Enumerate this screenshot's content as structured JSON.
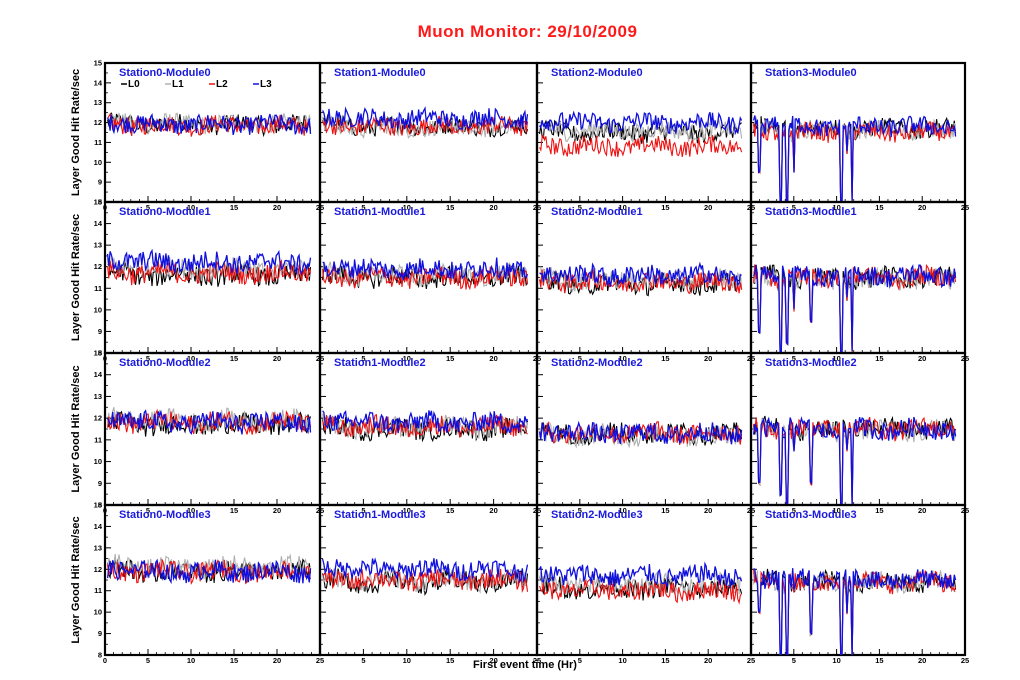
{
  "title": "Muon Monitor:  29/10/2009",
  "colors": {
    "title": "#ff1a1a",
    "panel_title": "#1a1adc",
    "L0": "#000000",
    "L1": "#b0b0b0",
    "L2": "#ee1111",
    "L3": "#1010dd"
  },
  "legend": [
    "L0",
    "L1",
    "L2",
    "L3"
  ],
  "ylabel": "Layer Good Hit Rate/sec",
  "xlabel": "First event time (Hr)",
  "x_ticks": [
    "0",
    "5",
    "10",
    "15",
    "20",
    "25"
  ],
  "y_ticks": [
    "8",
    "9",
    "10",
    "11",
    "12",
    "13",
    "14",
    "15"
  ],
  "chart_data": {
    "type": "line",
    "title": "Muon Monitor:  29/10/2009",
    "xlabel": "First event time (Hr)",
    "ylabel": "Layer Good Hit Rate/sec",
    "xlim": [
      0,
      25
    ],
    "ylim": [
      8,
      15
    ],
    "grid": false,
    "legend_placement": "top-left of first panel",
    "series_names": [
      "L0",
      "L1",
      "L2",
      "L3"
    ],
    "panels": [
      {
        "title": "Station0-Module0",
        "row": 0,
        "col": 0,
        "levels": {
          "L0": 11.9,
          "L1": 11.95,
          "L2": 11.85,
          "L3": 11.9
        },
        "dips": []
      },
      {
        "title": "Station1-Module0",
        "row": 0,
        "col": 1,
        "levels": {
          "L0": 11.8,
          "L1": 11.75,
          "L2": 11.8,
          "L3": 12.2
        },
        "dips": []
      },
      {
        "title": "Station2-Module0",
        "row": 0,
        "col": 2,
        "levels": {
          "L0": 11.5,
          "L1": 11.6,
          "L2": 10.8,
          "L3": 12.0
        },
        "dips": []
      },
      {
        "title": "Station3-Module0",
        "row": 0,
        "col": 3,
        "levels": {
          "L0": 11.7,
          "L1": 11.6,
          "L2": 11.5,
          "L3": 11.8
        },
        "dips": [
          [
            1,
            9.5
          ],
          [
            3.5,
            8
          ],
          [
            4.2,
            8
          ],
          [
            5,
            9.5
          ],
          [
            10.5,
            8
          ],
          [
            11.2,
            10.5
          ],
          [
            11.8,
            8
          ]
        ]
      },
      {
        "title": "Station0-Module1",
        "row": 1,
        "col": 0,
        "levels": {
          "L0": 11.6,
          "L1": 11.9,
          "L2": 11.7,
          "L3": 12.2
        },
        "dips": []
      },
      {
        "title": "Station1-Module1",
        "row": 1,
        "col": 1,
        "levels": {
          "L0": 11.5,
          "L1": 11.6,
          "L2": 11.5,
          "L3": 11.9
        },
        "dips": []
      },
      {
        "title": "Station2-Module1",
        "row": 1,
        "col": 2,
        "levels": {
          "L0": 11.2,
          "L1": 11.4,
          "L2": 11.3,
          "L3": 11.6
        },
        "dips": []
      },
      {
        "title": "Station3-Module1",
        "row": 1,
        "col": 3,
        "levels": {
          "L0": 11.5,
          "L1": 11.4,
          "L2": 11.5,
          "L3": 11.6
        },
        "dips": [
          [
            1,
            9
          ],
          [
            3.5,
            8
          ],
          [
            4.2,
            8.5
          ],
          [
            5,
            10
          ],
          [
            7,
            9.5
          ],
          [
            10.5,
            8
          ],
          [
            11.2,
            10.5
          ],
          [
            11.8,
            8
          ]
        ]
      },
      {
        "title": "Station0-Module2",
        "row": 2,
        "col": 0,
        "levels": {
          "L0": 11.7,
          "L1": 11.9,
          "L2": 11.8,
          "L3": 11.8
        },
        "dips": []
      },
      {
        "title": "Station1-Module2",
        "row": 2,
        "col": 1,
        "levels": {
          "L0": 11.5,
          "L1": 11.6,
          "L2": 11.6,
          "L3": 11.8
        },
        "dips": []
      },
      {
        "title": "Station2-Module2",
        "row": 2,
        "col": 2,
        "levels": {
          "L0": 11.3,
          "L1": 11.2,
          "L2": 11.3,
          "L3": 11.3
        },
        "dips": []
      },
      {
        "title": "Station3-Module2",
        "row": 2,
        "col": 3,
        "levels": {
          "L0": 11.5,
          "L1": 11.4,
          "L2": 11.5,
          "L3": 11.5
        },
        "dips": [
          [
            1,
            9
          ],
          [
            3.5,
            8.5
          ],
          [
            4.2,
            8
          ],
          [
            5,
            10.5
          ],
          [
            7,
            9
          ],
          [
            10.5,
            8
          ],
          [
            11.2,
            10.5
          ],
          [
            11.8,
            8
          ]
        ]
      },
      {
        "title": "Station0-Module3",
        "row": 3,
        "col": 0,
        "levels": {
          "L0": 11.9,
          "L1": 12.1,
          "L2": 11.9,
          "L3": 11.9
        },
        "dips": []
      },
      {
        "title": "Station1-Module3",
        "row": 3,
        "col": 1,
        "levels": {
          "L0": 11.4,
          "L1": 11.5,
          "L2": 11.5,
          "L3": 12.0
        },
        "dips": []
      },
      {
        "title": "Station2-Module3",
        "row": 3,
        "col": 2,
        "levels": {
          "L0": 11.1,
          "L1": 11.3,
          "L2": 11.0,
          "L3": 11.7
        },
        "dips": []
      },
      {
        "title": "Station3-Module3",
        "row": 3,
        "col": 3,
        "levels": {
          "L0": 11.4,
          "L1": 11.4,
          "L2": 11.4,
          "L3": 11.5
        },
        "dips": [
          [
            1,
            10
          ],
          [
            3.5,
            8
          ],
          [
            4.2,
            8
          ],
          [
            5,
            11
          ],
          [
            7,
            9
          ],
          [
            10.5,
            8
          ],
          [
            11.2,
            10
          ],
          [
            11.8,
            8
          ]
        ]
      }
    ]
  }
}
